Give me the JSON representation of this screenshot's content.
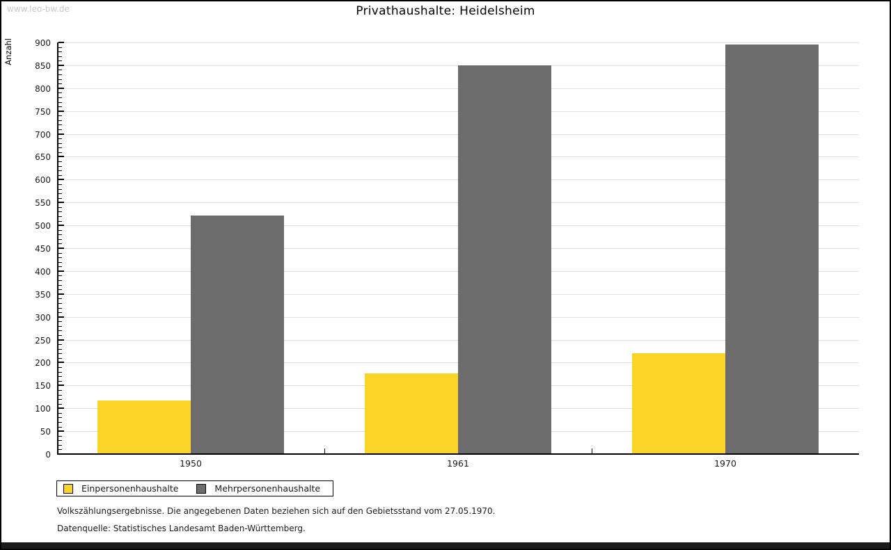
{
  "watermark": "www.leo-bw.de",
  "title": "Privathaushalte: Heidelsheim",
  "chart_data": {
    "type": "bar",
    "title": "Privathaushalte: Heidelsheim",
    "categories": [
      "1950",
      "1961",
      "1970"
    ],
    "series": [
      {
        "name": "Einpersonenhaushalte",
        "color": "#FCD42A",
        "values": [
          117,
          176,
          221
        ]
      },
      {
        "name": "Mehrpersonenhaushalte",
        "color": "#6C6C6C",
        "values": [
          522,
          850,
          895
        ]
      }
    ],
    "xlabel": "",
    "ylabel": "Anzahl",
    "ylim": [
      0,
      900
    ],
    "yticks": [
      0,
      50,
      100,
      150,
      200,
      250,
      300,
      350,
      400,
      450,
      500,
      550,
      600,
      650,
      700,
      750,
      800,
      850,
      900
    ],
    "ytick_step": 50,
    "minor_tick_step": 10,
    "grid": true,
    "legend_position": "bottom-left"
  },
  "footnotes": [
    "Volkszählungsergebnisse. Die angegebenen Daten beziehen sich auf den Gebietsstand vom 27.05.1970.",
    "Datenquelle: Statistisches Landesamt Baden-Württemberg."
  ]
}
